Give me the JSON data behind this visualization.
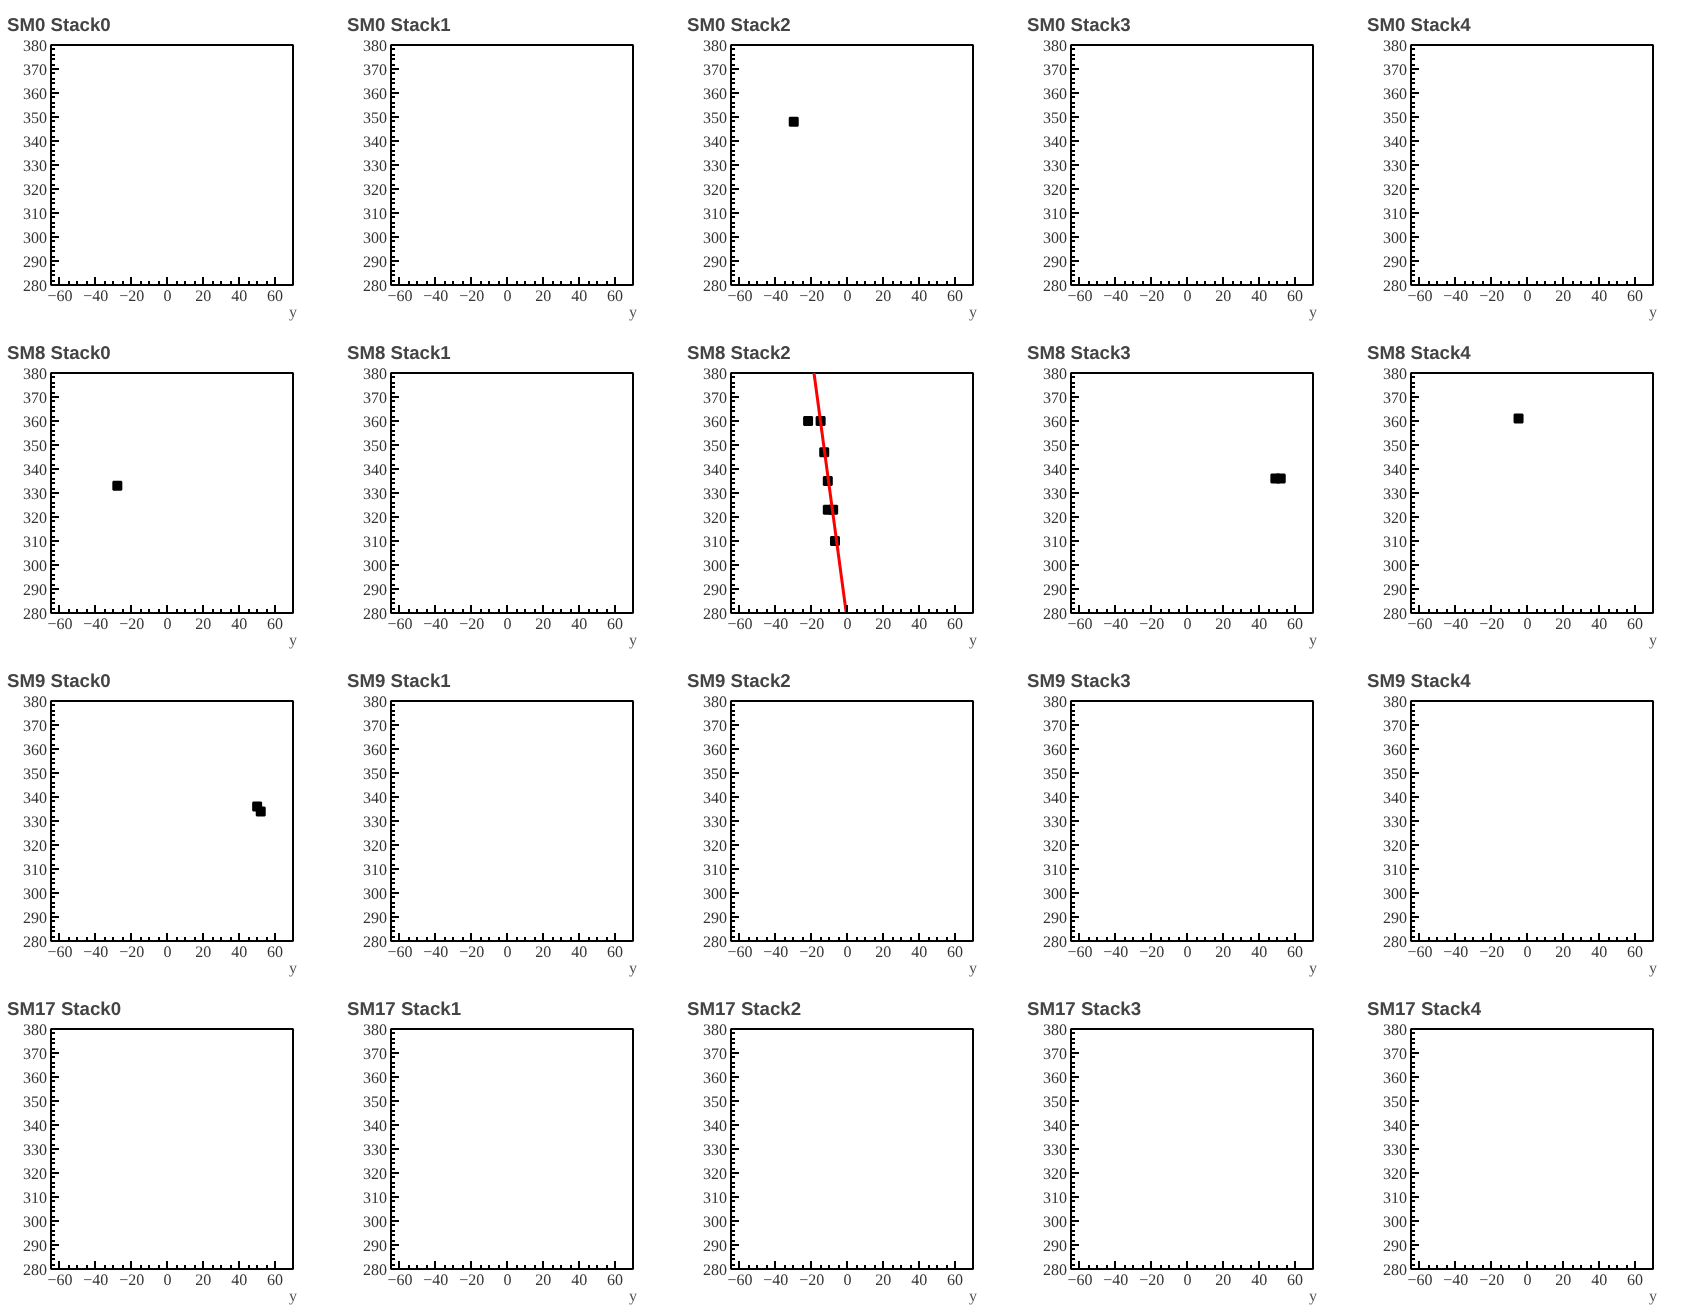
{
  "chart_data": [
    {
      "type": "scatter",
      "title": "SM0 Stack0",
      "xlabel": "y",
      "xlim": [
        -65,
        70
      ],
      "ylim": [
        280,
        380
      ],
      "xticks": [
        -60,
        -40,
        -20,
        0,
        20,
        40,
        60
      ],
      "yticks": [
        280,
        290,
        300,
        310,
        320,
        330,
        340,
        350,
        360,
        370,
        380
      ]
    },
    {
      "type": "scatter",
      "title": "SM0 Stack1",
      "xlabel": "y",
      "xlim": [
        -65,
        70
      ],
      "ylim": [
        280,
        380
      ],
      "xticks": [
        -60,
        -40,
        -20,
        0,
        20,
        40,
        60
      ],
      "yticks": [
        280,
        290,
        300,
        310,
        320,
        330,
        340,
        350,
        360,
        370,
        380
      ]
    },
    {
      "type": "scatter",
      "title": "SM0 Stack2",
      "xlabel": "y",
      "xlim": [
        -65,
        70
      ],
      "ylim": [
        280,
        380
      ],
      "xticks": [
        -60,
        -40,
        -20,
        0,
        20,
        40,
        60
      ],
      "yticks": [
        280,
        290,
        300,
        310,
        320,
        330,
        340,
        350,
        360,
        370,
        380
      ],
      "marker": "square",
      "series": [
        {
          "color": "#000000",
          "x": [
            -30
          ],
          "values": [
            348
          ]
        }
      ]
    },
    {
      "type": "scatter",
      "title": "SM0 Stack3",
      "xlabel": "y",
      "xlim": [
        -65,
        70
      ],
      "ylim": [
        280,
        380
      ],
      "xticks": [
        -60,
        -40,
        -20,
        0,
        20,
        40,
        60
      ],
      "yticks": [
        280,
        290,
        300,
        310,
        320,
        330,
        340,
        350,
        360,
        370,
        380
      ]
    },
    {
      "type": "scatter",
      "title": "SM0 Stack4",
      "xlabel": "y",
      "xlim": [
        -65,
        70
      ],
      "ylim": [
        280,
        380
      ],
      "xticks": [
        -60,
        -40,
        -20,
        0,
        20,
        40,
        60
      ],
      "yticks": [
        280,
        290,
        300,
        310,
        320,
        330,
        340,
        350,
        360,
        370,
        380
      ]
    },
    {
      "type": "scatter",
      "title": "SM8 Stack0",
      "xlabel": "y",
      "xlim": [
        -65,
        70
      ],
      "ylim": [
        280,
        380
      ],
      "xticks": [
        -60,
        -40,
        -20,
        0,
        20,
        40,
        60
      ],
      "yticks": [
        280,
        290,
        300,
        310,
        320,
        330,
        340,
        350,
        360,
        370,
        380
      ],
      "marker": "square",
      "series": [
        {
          "color": "#000000",
          "x": [
            -28
          ],
          "values": [
            333
          ]
        }
      ]
    },
    {
      "type": "scatter",
      "title": "SM8 Stack1",
      "xlabel": "y",
      "xlim": [
        -65,
        70
      ],
      "ylim": [
        280,
        380
      ],
      "xticks": [
        -60,
        -40,
        -20,
        0,
        20,
        40,
        60
      ],
      "yticks": [
        280,
        290,
        300,
        310,
        320,
        330,
        340,
        350,
        360,
        370,
        380
      ]
    },
    {
      "type": "scatter",
      "title": "SM8 Stack2",
      "xlabel": "y",
      "xlim": [
        -65,
        70
      ],
      "ylim": [
        280,
        380
      ],
      "xticks": [
        -60,
        -40,
        -20,
        0,
        20,
        40,
        60
      ],
      "yticks": [
        280,
        290,
        300,
        310,
        320,
        330,
        340,
        350,
        360,
        370,
        380
      ],
      "series": [
        {
          "marker": "square",
          "color": "#000000",
          "x": [
            -22,
            -15,
            -13,
            -11,
            -11,
            -8,
            -7
          ],
          "values": [
            360,
            360,
            347,
            335,
            323,
            323,
            310
          ]
        },
        {
          "type": "line",
          "color": "#ff0000",
          "x": [
            -18.7,
            -0.7
          ],
          "values": [
            380,
            280
          ]
        }
      ]
    },
    {
      "type": "scatter",
      "title": "SM8 Stack3",
      "xlabel": "y",
      "xlim": [
        -65,
        70
      ],
      "ylim": [
        280,
        380
      ],
      "xticks": [
        -60,
        -40,
        -20,
        0,
        20,
        40,
        60
      ],
      "yticks": [
        280,
        290,
        300,
        310,
        320,
        330,
        340,
        350,
        360,
        370,
        380
      ],
      "marker": "square",
      "series": [
        {
          "color": "#000000",
          "x": [
            49,
            52
          ],
          "values": [
            336,
            336
          ]
        }
      ]
    },
    {
      "type": "scatter",
      "title": "SM8 Stack4",
      "xlabel": "y",
      "xlim": [
        -65,
        70
      ],
      "ylim": [
        280,
        380
      ],
      "xticks": [
        -60,
        -40,
        -20,
        0,
        20,
        40,
        60
      ],
      "yticks": [
        280,
        290,
        300,
        310,
        320,
        330,
        340,
        350,
        360,
        370,
        380
      ],
      "marker": "square",
      "series": [
        {
          "color": "#000000",
          "x": [
            -5
          ],
          "values": [
            361
          ]
        }
      ]
    },
    {
      "type": "scatter",
      "title": "SM9 Stack0",
      "xlabel": "y",
      "xlim": [
        -65,
        70
      ],
      "ylim": [
        280,
        380
      ],
      "xticks": [
        -60,
        -40,
        -20,
        0,
        20,
        40,
        60
      ],
      "yticks": [
        280,
        290,
        300,
        310,
        320,
        330,
        340,
        350,
        360,
        370,
        380
      ],
      "marker": "square",
      "series": [
        {
          "color": "#000000",
          "x": [
            50,
            52
          ],
          "values": [
            336,
            334
          ]
        }
      ]
    },
    {
      "type": "scatter",
      "title": "SM9 Stack1",
      "xlabel": "y",
      "xlim": [
        -65,
        70
      ],
      "ylim": [
        280,
        380
      ],
      "xticks": [
        -60,
        -40,
        -20,
        0,
        20,
        40,
        60
      ],
      "yticks": [
        280,
        290,
        300,
        310,
        320,
        330,
        340,
        350,
        360,
        370,
        380
      ]
    },
    {
      "type": "scatter",
      "title": "SM9 Stack2",
      "xlabel": "y",
      "xlim": [
        -65,
        70
      ],
      "ylim": [
        280,
        380
      ],
      "xticks": [
        -60,
        -40,
        -20,
        0,
        20,
        40,
        60
      ],
      "yticks": [
        280,
        290,
        300,
        310,
        320,
        330,
        340,
        350,
        360,
        370,
        380
      ]
    },
    {
      "type": "scatter",
      "title": "SM9 Stack3",
      "xlabel": "y",
      "xlim": [
        -65,
        70
      ],
      "ylim": [
        280,
        380
      ],
      "xticks": [
        -60,
        -40,
        -20,
        0,
        20,
        40,
        60
      ],
      "yticks": [
        280,
        290,
        300,
        310,
        320,
        330,
        340,
        350,
        360,
        370,
        380
      ]
    },
    {
      "type": "scatter",
      "title": "SM9 Stack4",
      "xlabel": "y",
      "xlim": [
        -65,
        70
      ],
      "ylim": [
        280,
        380
      ],
      "xticks": [
        -60,
        -40,
        -20,
        0,
        20,
        40,
        60
      ],
      "yticks": [
        280,
        290,
        300,
        310,
        320,
        330,
        340,
        350,
        360,
        370,
        380
      ]
    },
    {
      "type": "scatter",
      "title": "SM17 Stack0",
      "xlabel": "y",
      "xlim": [
        -65,
        70
      ],
      "ylim": [
        280,
        380
      ],
      "xticks": [
        -60,
        -40,
        -20,
        0,
        20,
        40,
        60
      ],
      "yticks": [
        280,
        290,
        300,
        310,
        320,
        330,
        340,
        350,
        360,
        370,
        380
      ]
    },
    {
      "type": "scatter",
      "title": "SM17 Stack1",
      "xlabel": "y",
      "xlim": [
        -65,
        70
      ],
      "ylim": [
        280,
        380
      ],
      "xticks": [
        -60,
        -40,
        -20,
        0,
        20,
        40,
        60
      ],
      "yticks": [
        280,
        290,
        300,
        310,
        320,
        330,
        340,
        350,
        360,
        370,
        380
      ]
    },
    {
      "type": "scatter",
      "title": "SM17 Stack2",
      "xlabel": "y",
      "xlim": [
        -65,
        70
      ],
      "ylim": [
        280,
        380
      ],
      "xticks": [
        -60,
        -40,
        -20,
        0,
        20,
        40,
        60
      ],
      "yticks": [
        280,
        290,
        300,
        310,
        320,
        330,
        340,
        350,
        360,
        370,
        380
      ]
    },
    {
      "type": "scatter",
      "title": "SM17 Stack3",
      "xlabel": "y",
      "xlim": [
        -65,
        70
      ],
      "ylim": [
        280,
        380
      ],
      "xticks": [
        -60,
        -40,
        -20,
        0,
        20,
        40,
        60
      ],
      "yticks": [
        280,
        290,
        300,
        310,
        320,
        330,
        340,
        350,
        360,
        370,
        380
      ]
    },
    {
      "type": "scatter",
      "title": "SM17 Stack4",
      "xlabel": "y",
      "xlim": [
        -65,
        70
      ],
      "ylim": [
        280,
        380
      ],
      "xticks": [
        -60,
        -40,
        -20,
        0,
        20,
        40,
        60
      ],
      "yticks": [
        280,
        290,
        300,
        310,
        320,
        330,
        340,
        350,
        360,
        370,
        380
      ]
    }
  ]
}
